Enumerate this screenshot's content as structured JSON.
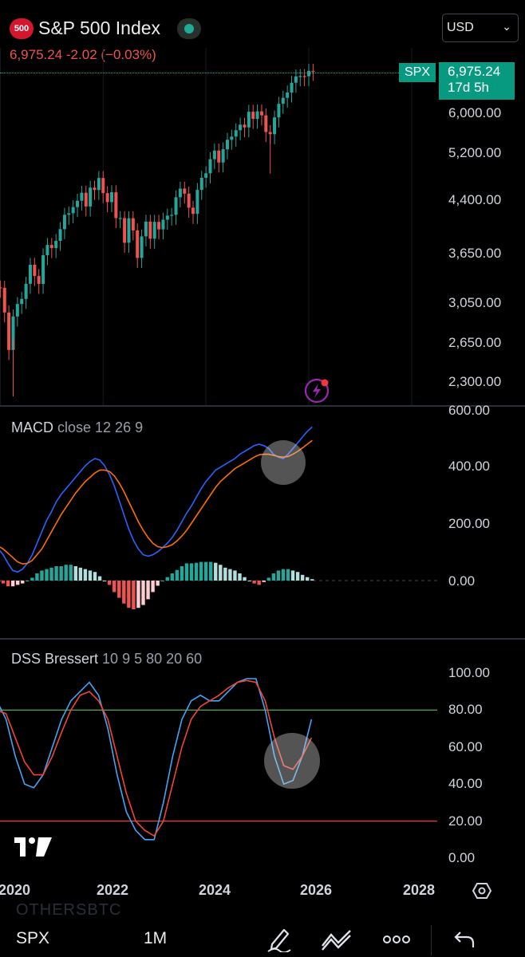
{
  "header": {
    "logo_text": "500",
    "title": "S&P 500 Index",
    "quote": "6,975.24  -2.02 (−0.03%)",
    "currency": "USD"
  },
  "price_tag": {
    "symbol": "SPX",
    "price": "6,975.24",
    "countdown": "17d 5h"
  },
  "colors": {
    "up": "#26a69a",
    "down": "#ef5350",
    "accent": "#089981",
    "macd": "#2962ff",
    "signal": "#ff6d00"
  },
  "price_axis": [
    "6,000.00",
    "5,200.00",
    "4,400.00",
    "3,650.00",
    "3,050.00",
    "2,650.00",
    "2,300.00"
  ],
  "macd": {
    "label": "MACD",
    "params": "close 12 26 9",
    "axis": [
      "600.00",
      "400.00",
      "200.00",
      "0.00"
    ]
  },
  "dss": {
    "label": "DSS Bressert",
    "params": "10 9 5 80 20 60",
    "axis": [
      "100.00",
      "80.00",
      "60.00",
      "40.00",
      "20.00",
      "0.00"
    ]
  },
  "time_axis": [
    "2020",
    "2022",
    "2024",
    "2026",
    "2028"
  ],
  "bottom": {
    "symbol": "SPX",
    "interval": "1M",
    "watermark": "OTHERSBTC"
  },
  "chart_data": [
    {
      "type": "candlestick",
      "title": "S&P 500 Index",
      "interval": "1M",
      "scale": "log",
      "ylim": [
        2200,
        7200
      ],
      "series": [
        {
          "name": "SPX",
          "x_start": "2019-12",
          "close": [
            3230,
            3225,
            2954,
            2585,
            2912,
            3044,
            3100,
            3271,
            3500,
            3363,
            3270,
            3621,
            3756,
            3714,
            3811,
            3973,
            4181,
            4204,
            4297,
            4395,
            4522,
            4307,
            4605,
            4567,
            4766,
            4516,
            4374,
            4530,
            4132,
            4132,
            3785,
            4130,
            3955,
            3586,
            3872,
            4080,
            3840,
            4077,
            3970,
            4109,
            4169,
            4180,
            4450,
            4589,
            4508,
            4288,
            4194,
            4568,
            4770,
            4846,
            5096,
            5254,
            5036,
            5278,
            5460,
            5522,
            5648,
            5762,
            5705,
            6032,
            5882,
            6041,
            5955,
            5612,
            5569,
            5912,
            6205,
            6339,
            6460,
            6688,
            6840,
            6849,
            6845,
            6977,
            6975
          ]
        }
      ]
    },
    {
      "type": "line",
      "title": "MACD",
      "ylim": [
        -150,
        600
      ],
      "series": [
        {
          "name": "MACD",
          "values": [
            110,
            90,
            60,
            35,
            30,
            40,
            60,
            90,
            130,
            170,
            210,
            240,
            275,
            300,
            320,
            340,
            360,
            380,
            400,
            415,
            425,
            420,
            400,
            370,
            330,
            280,
            230,
            180,
            140,
            110,
            90,
            85,
            90,
            100,
            115,
            130,
            150,
            175,
            205,
            235,
            260,
            290,
            320,
            345,
            365,
            385,
            395,
            405,
            415,
            425,
            440,
            450,
            460,
            470,
            475,
            470,
            460,
            440,
            430,
            425,
            440,
            460,
            480,
            500,
            520,
            535
          ]
        },
        {
          "name": "Signal",
          "values": [
            120,
            110,
            95,
            80,
            65,
            58,
            60,
            70,
            90,
            110,
            140,
            170,
            200,
            230,
            255,
            280,
            305,
            325,
            345,
            360,
            375,
            385,
            385,
            380,
            365,
            340,
            310,
            275,
            240,
            205,
            175,
            150,
            130,
            118,
            115,
            118,
            125,
            138,
            155,
            175,
            200,
            225,
            250,
            275,
            300,
            325,
            345,
            360,
            375,
            390,
            400,
            410,
            420,
            430,
            438,
            440,
            440,
            436,
            432,
            430,
            432,
            440,
            450,
            462,
            475,
            488
          ]
        }
      ],
      "histogram": [
        -5,
        -10,
        -20,
        -20,
        -15,
        -10,
        0,
        10,
        25,
        35,
        40,
        45,
        50,
        50,
        55,
        55,
        50,
        45,
        40,
        35,
        30,
        15,
        0,
        -15,
        -40,
        -60,
        -80,
        -95,
        -100,
        -95,
        -85,
        -65,
        -40,
        -18,
        0,
        12,
        25,
        37,
        50,
        60,
        60,
        62,
        65,
        65,
        65,
        62,
        55,
        45,
        40,
        35,
        25,
        12,
        0,
        -10,
        -15,
        -5,
        10,
        25,
        35,
        40,
        40,
        35,
        30,
        20,
        12,
        5
      ]
    },
    {
      "type": "line",
      "title": "DSS Bressert",
      "ylim": [
        0,
        100
      ],
      "reference_lines": [
        80,
        20
      ],
      "series": [
        {
          "name": "DSS",
          "values": [
            85,
            75,
            55,
            40,
            38,
            45,
            60,
            75,
            85,
            90,
            95,
            88,
            70,
            45,
            25,
            15,
            10,
            10,
            30,
            55,
            75,
            85,
            88,
            85,
            85,
            90,
            95,
            97,
            97,
            80,
            55,
            40,
            42,
            55,
            75
          ]
        },
        {
          "name": "Signal",
          "values": [
            80,
            78,
            65,
            52,
            45,
            45,
            55,
            68,
            80,
            88,
            90,
            85,
            75,
            55,
            35,
            20,
            15,
            12,
            20,
            40,
            60,
            75,
            82,
            85,
            88,
            92,
            95,
            96,
            95,
            85,
            65,
            50,
            48,
            55,
            65
          ]
        }
      ]
    }
  ]
}
